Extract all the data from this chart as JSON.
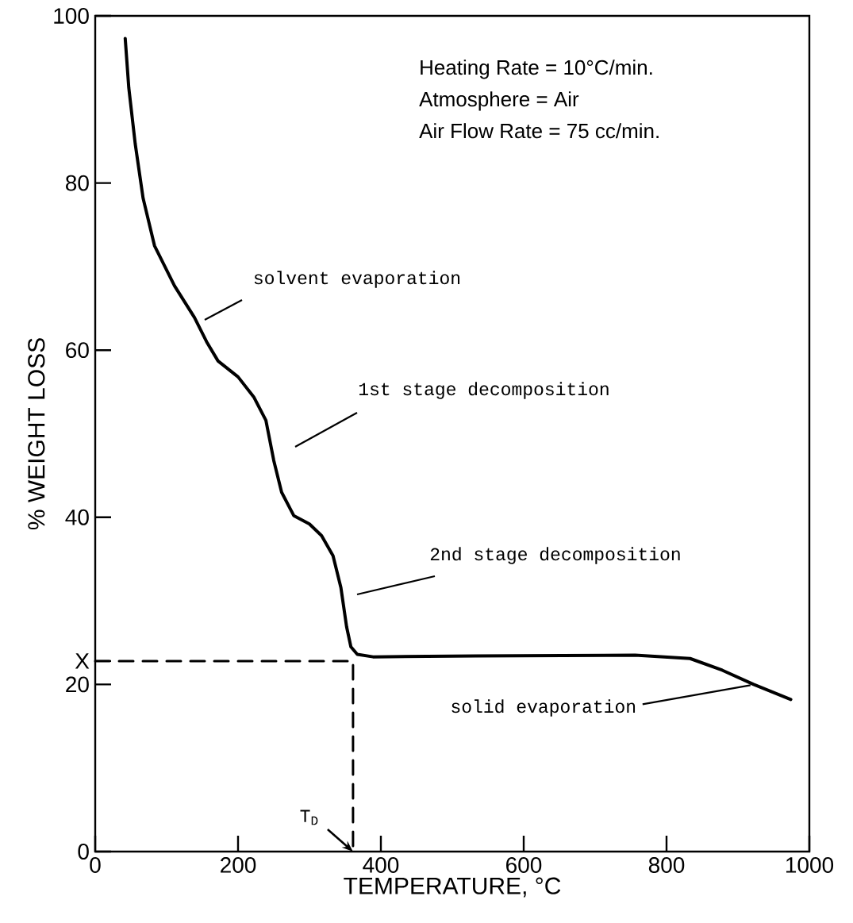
{
  "chart_data": {
    "type": "line",
    "xlabel": "TEMPERATURE, °C",
    "ylabel": "% WEIGHT LOSS",
    "xlim": [
      0,
      1000
    ],
    "ylim": [
      0,
      100
    ],
    "xticks": [
      0,
      200,
      400,
      600,
      800,
      1000
    ],
    "yticks": [
      0,
      20,
      {
        "value": 22.8,
        "label": "X"
      },
      40,
      60,
      80,
      100
    ],
    "series": [
      {
        "color": "#000000",
        "line_style": "solid",
        "x": [
          42,
          47,
          56,
          67,
          83,
          111,
          139,
          156,
          172,
          200,
          222,
          239,
          250,
          261,
          278,
          300,
          317,
          333,
          344,
          352,
          358,
          367,
          389,
          533,
          756,
          833,
          878,
          922,
          974
        ],
        "values": [
          97.3,
          91.4,
          84.7,
          78.2,
          72.5,
          67.7,
          63.9,
          61,
          58.7,
          56.8,
          54.4,
          51.6,
          46.8,
          43,
          40.2,
          39.2,
          37.8,
          35.4,
          31.6,
          26.9,
          24.5,
          23.6,
          23.3,
          23.4,
          23.5,
          23.1,
          21.7,
          20,
          18.2
        ]
      },
      {
        "color": "#000000",
        "line_style": "dashed",
        "x": [
          0,
          361,
          361
        ],
        "values": [
          22.8,
          22.8,
          0
        ]
      }
    ],
    "annotations": [
      "Heating Rate = 10°C/min.",
      "Atmosphere = Air",
      "Air Flow Rate = 75 cc/min.",
      "solvent evaporation",
      "1st stage decomposition",
      "2nd stage decomposition",
      {
        "text": "solid evaporation",
        "x": 922,
        "y": 20
      },
      {
        "text": "T$_{D}$",
        "x": 361,
        "y": 0
      }
    ]
  }
}
